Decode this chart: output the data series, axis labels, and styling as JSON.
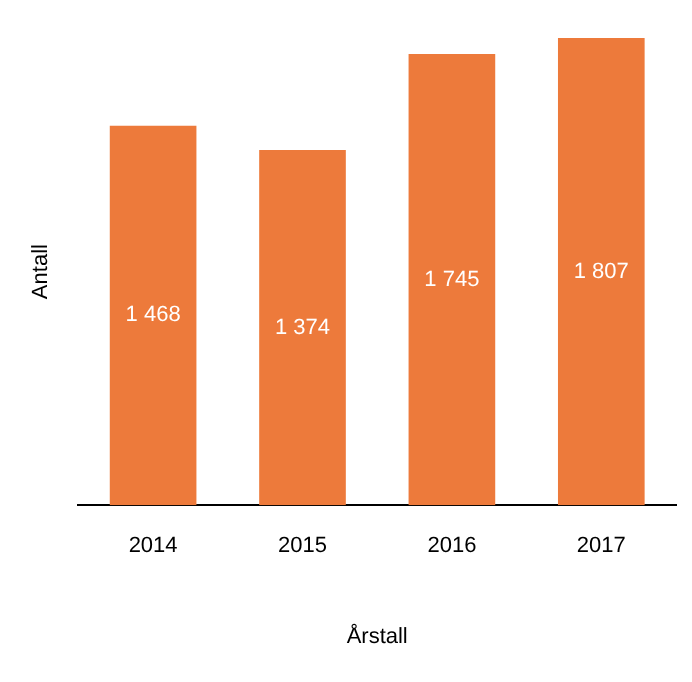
{
  "chart_data": {
    "type": "bar",
    "xlabel": "Årstall",
    "ylabel": "Antall",
    "categories": [
      "2014",
      "2015",
      "2016",
      "2017"
    ],
    "values": [
      1468,
      1374,
      1745,
      1807
    ],
    "value_labels": [
      "1 468",
      "1 374",
      "1 745",
      "1 807"
    ],
    "color": "#ed7a3b",
    "grid": false,
    "legend": false
  }
}
